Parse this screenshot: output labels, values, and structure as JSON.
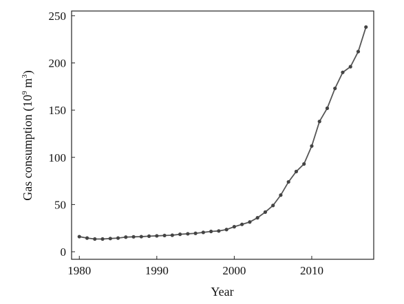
{
  "chart_data": {
    "type": "line",
    "title": "",
    "xlabel": "Year",
    "ylabel_prefix": "Gas consumption (10",
    "ylabel_exp": "9",
    "ylabel_unit": " m",
    "ylabel_unit_exp": "3",
    "ylabel_suffix": ")",
    "xlim": [
      1979,
      2018
    ],
    "ylim": [
      -8,
      255
    ],
    "xticks": [
      1980,
      1990,
      2000,
      2010
    ],
    "yticks": [
      0,
      50,
      100,
      150,
      200,
      250
    ],
    "grid": false,
    "line_color": "#555555",
    "marker_color": "#444444",
    "series": [
      {
        "x": [
          1980,
          1981,
          1982,
          1983,
          1984,
          1985,
          1986,
          1987,
          1988,
          1989,
          1990,
          1991,
          1992,
          1993,
          1994,
          1995,
          1996,
          1997,
          1998,
          1999,
          2000,
          2001,
          2002,
          2003,
          2004,
          2005,
          2006,
          2007,
          2008,
          2009,
          2010,
          2011,
          2012,
          2013,
          2014,
          2015,
          2016,
          2017
        ],
        "values": [
          16,
          14.5,
          13.5,
          13.5,
          14,
          14.5,
          15.5,
          15.8,
          16,
          16.5,
          16.8,
          17.2,
          17.5,
          18.5,
          19,
          19.5,
          20.5,
          21.5,
          22,
          23.5,
          26.5,
          29,
          31.5,
          36,
          42,
          49,
          60,
          74,
          85,
          93,
          112,
          138,
          152,
          173,
          190,
          196,
          212,
          238
        ]
      }
    ]
  }
}
